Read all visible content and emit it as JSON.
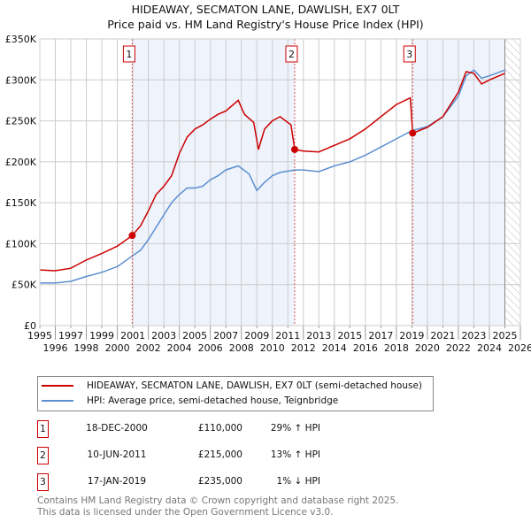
{
  "chart_data": {
    "type": "line",
    "title": "HIDEAWAY, SECMATON LANE, DAWLISH, EX7 0LT",
    "subtitle": "Price paid vs. HM Land Registry's House Price Index (HPI)",
    "xlim": [
      1995,
      2026
    ],
    "ylim": [
      0,
      350000
    ],
    "x_ticks": [
      "1995",
      "1996",
      "1997",
      "1998",
      "1999",
      "2000",
      "2001",
      "2002",
      "2003",
      "2004",
      "2005",
      "2006",
      "2007",
      "2008",
      "2009",
      "2010",
      "2011",
      "2012",
      "2013",
      "2014",
      "2015",
      "2016",
      "2017",
      "2018",
      "2019",
      "2020",
      "2021",
      "2022",
      "2023",
      "2024",
      "2025",
      "2026"
    ],
    "y_ticks": [
      {
        "v": 0,
        "label": "£0"
      },
      {
        "v": 50000,
        "label": "£50K"
      },
      {
        "v": 100000,
        "label": "£100K"
      },
      {
        "v": 150000,
        "label": "£150K"
      },
      {
        "v": 200000,
        "label": "£200K"
      },
      {
        "v": 250000,
        "label": "£250K"
      },
      {
        "v": 300000,
        "label": "£300K"
      },
      {
        "v": 350000,
        "label": "£350K"
      }
    ],
    "grid": true,
    "forecast_hatch_from": 2025.0,
    "series": [
      {
        "name": "HIDEAWAY, SECMATON LANE, DAWLISH, EX7 0LT (semi-detached house)",
        "color": "#cc0000",
        "x": [
          1995,
          1996,
          1997,
          1998,
          1999,
          2000,
          2000.96,
          2001.5,
          2002,
          2002.5,
          2003,
          2003.5,
          2004,
          2004.5,
          2005,
          2005.5,
          2006,
          2006.5,
          2007,
          2007.8,
          2008.2,
          2008.8,
          2009.1,
          2009.5,
          2010,
          2010.5,
          2011.2,
          2011.44,
          2012,
          2013,
          2014,
          2015,
          2016,
          2017,
          2018,
          2018.9,
          2019.05,
          2020,
          2021,
          2022,
          2022.5,
          2023,
          2023.5,
          2024,
          2025
        ],
        "y": [
          68000,
          67000,
          70000,
          80000,
          88000,
          97000,
          110000,
          122000,
          140000,
          160000,
          170000,
          183000,
          210000,
          230000,
          240000,
          245000,
          252000,
          258000,
          262000,
          275000,
          258000,
          248000,
          215000,
          240000,
          250000,
          255000,
          245000,
          215000,
          213000,
          212000,
          220000,
          228000,
          240000,
          255000,
          270000,
          278000,
          235000,
          242000,
          255000,
          285000,
          310000,
          308000,
          295000,
          300000,
          308000
        ]
      },
      {
        "name": "HPI: Average price, semi-detached house, Teignbridge",
        "color": "#5b8fd0",
        "x": [
          1995,
          1996,
          1997,
          1998,
          1999,
          2000,
          2000.96,
          2001.5,
          2002,
          2002.5,
          2003,
          2003.5,
          2004,
          2004.5,
          2005,
          2005.5,
          2006,
          2006.5,
          2007,
          2007.8,
          2008.5,
          2009,
          2009.5,
          2010,
          2010.5,
          2011.44,
          2012,
          2013,
          2014,
          2015,
          2016,
          2017,
          2018,
          2019,
          2020,
          2021,
          2022,
          2022.5,
          2023,
          2023.5,
          2024,
          2025
        ],
        "y": [
          52000,
          52000,
          54000,
          60000,
          65000,
          72000,
          85000,
          92000,
          105000,
          120000,
          135000,
          150000,
          160000,
          168000,
          168000,
          170000,
          178000,
          183000,
          190000,
          195000,
          185000,
          165000,
          175000,
          183000,
          187000,
          190000,
          190000,
          188000,
          195000,
          200000,
          208000,
          218000,
          228000,
          238000,
          243000,
          255000,
          280000,
          305000,
          312000,
          302000,
          305000,
          312000
        ]
      }
    ],
    "sales": [
      {
        "n": "1",
        "x": 2000.96,
        "y": 110000,
        "date": "18-DEC-2000",
        "price": "£110,000",
        "hpi": "29% ↑ HPI"
      },
      {
        "n": "2",
        "x": 2011.44,
        "y": 215000,
        "date": "10-JUN-2011",
        "price": "£215,000",
        "hpi": "13% ↑ HPI"
      },
      {
        "n": "3",
        "x": 2019.05,
        "y": 235000,
        "date": "17-JAN-2019",
        "price": "£235,000",
        "hpi": "1% ↓ HPI"
      }
    ],
    "legend_position": "below"
  },
  "legend": {
    "red": "HIDEAWAY, SECMATON LANE, DAWLISH, EX7 0LT (semi-detached house)",
    "blue": "HPI: Average price, semi-detached house, Teignbridge"
  },
  "footer": {
    "line1": "Contains HM Land Registry data © Crown copyright and database right 2025.",
    "line2": "This data is licensed under the Open Government Licence v3.0."
  }
}
